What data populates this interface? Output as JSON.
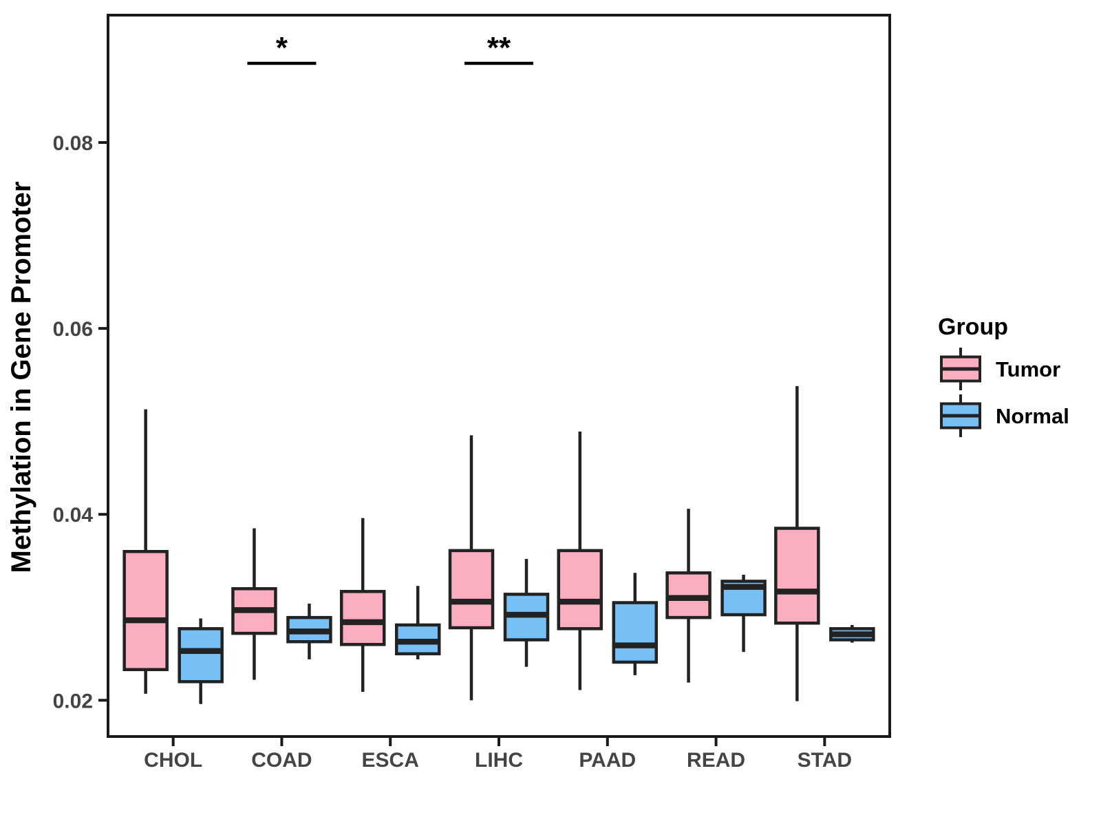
{
  "chart_data": {
    "type": "boxplot",
    "title": "",
    "xlabel": "",
    "ylabel": "Methylation in Gene Promoter",
    "categories": [
      "CHOL",
      "COAD",
      "ESCA",
      "LIHC",
      "PAAD",
      "READ",
      "STAD"
    ],
    "y_ticks": [
      0.02,
      0.04,
      0.06,
      0.08
    ],
    "y_tick_labels": [
      "0.02",
      "0.04",
      "0.06",
      "0.08"
    ],
    "ylim": [
      0.0161,
      0.0937
    ],
    "grid": false,
    "legend": {
      "title": "Group",
      "position": "right",
      "entries": [
        {
          "label": "Tumor",
          "color": "#FAAEC0"
        },
        {
          "label": "Normal",
          "color": "#76C0F6"
        }
      ]
    },
    "series": [
      {
        "name": "Tumor",
        "color": "#FAAEC0",
        "boxes": [
          {
            "category": "CHOL",
            "min": 0.0207,
            "q1": 0.0233,
            "median": 0.0286,
            "q3": 0.036,
            "max": 0.0513
          },
          {
            "category": "COAD",
            "min": 0.0222,
            "q1": 0.0272,
            "median": 0.0297,
            "q3": 0.032,
            "max": 0.0385
          },
          {
            "category": "ESCA",
            "min": 0.0209,
            "q1": 0.026,
            "median": 0.0284,
            "q3": 0.0317,
            "max": 0.0396
          },
          {
            "category": "LIHC",
            "min": 0.02,
            "q1": 0.0278,
            "median": 0.0306,
            "q3": 0.0361,
            "max": 0.0485
          },
          {
            "category": "PAAD",
            "min": 0.0211,
            "q1": 0.0277,
            "median": 0.0306,
            "q3": 0.0361,
            "max": 0.0489
          },
          {
            "category": "READ",
            "min": 0.0219,
            "q1": 0.0289,
            "median": 0.031,
            "q3": 0.0337,
            "max": 0.0406
          },
          {
            "category": "STAD",
            "min": 0.0199,
            "q1": 0.0283,
            "median": 0.0317,
            "q3": 0.0385,
            "max": 0.0538
          }
        ]
      },
      {
        "name": "Normal",
        "color": "#76C0F6",
        "boxes": [
          {
            "category": "CHOL",
            "min": 0.0196,
            "q1": 0.022,
            "median": 0.0253,
            "q3": 0.0277,
            "max": 0.0288
          },
          {
            "category": "COAD",
            "min": 0.0244,
            "q1": 0.0263,
            "median": 0.0274,
            "q3": 0.0289,
            "max": 0.0304
          },
          {
            "category": "ESCA",
            "min": 0.0244,
            "q1": 0.025,
            "median": 0.0263,
            "q3": 0.0281,
            "max": 0.0323
          },
          {
            "category": "LIHC",
            "min": 0.0236,
            "q1": 0.0265,
            "median": 0.0292,
            "q3": 0.0314,
            "max": 0.0352
          },
          {
            "category": "PAAD",
            "min": 0.0227,
            "q1": 0.0241,
            "median": 0.0259,
            "q3": 0.0305,
            "max": 0.0337
          },
          {
            "category": "READ",
            "min": 0.0252,
            "q1": 0.0292,
            "median": 0.0322,
            "q3": 0.0328,
            "max": 0.0335
          },
          {
            "category": "STAD",
            "min": 0.0262,
            "q1": 0.0265,
            "median": 0.0271,
            "q3": 0.0277,
            "max": 0.0281
          }
        ]
      }
    ],
    "annotations": [
      {
        "category": "COAD",
        "label": "*"
      },
      {
        "category": "LIHC",
        "label": "**"
      }
    ],
    "style": {
      "box_border_color": "#222222",
      "axis_border_color": "#1a1a1a",
      "tick_label_color": "#444444",
      "annotation_color": "#000000",
      "background": "#ffffff"
    }
  }
}
